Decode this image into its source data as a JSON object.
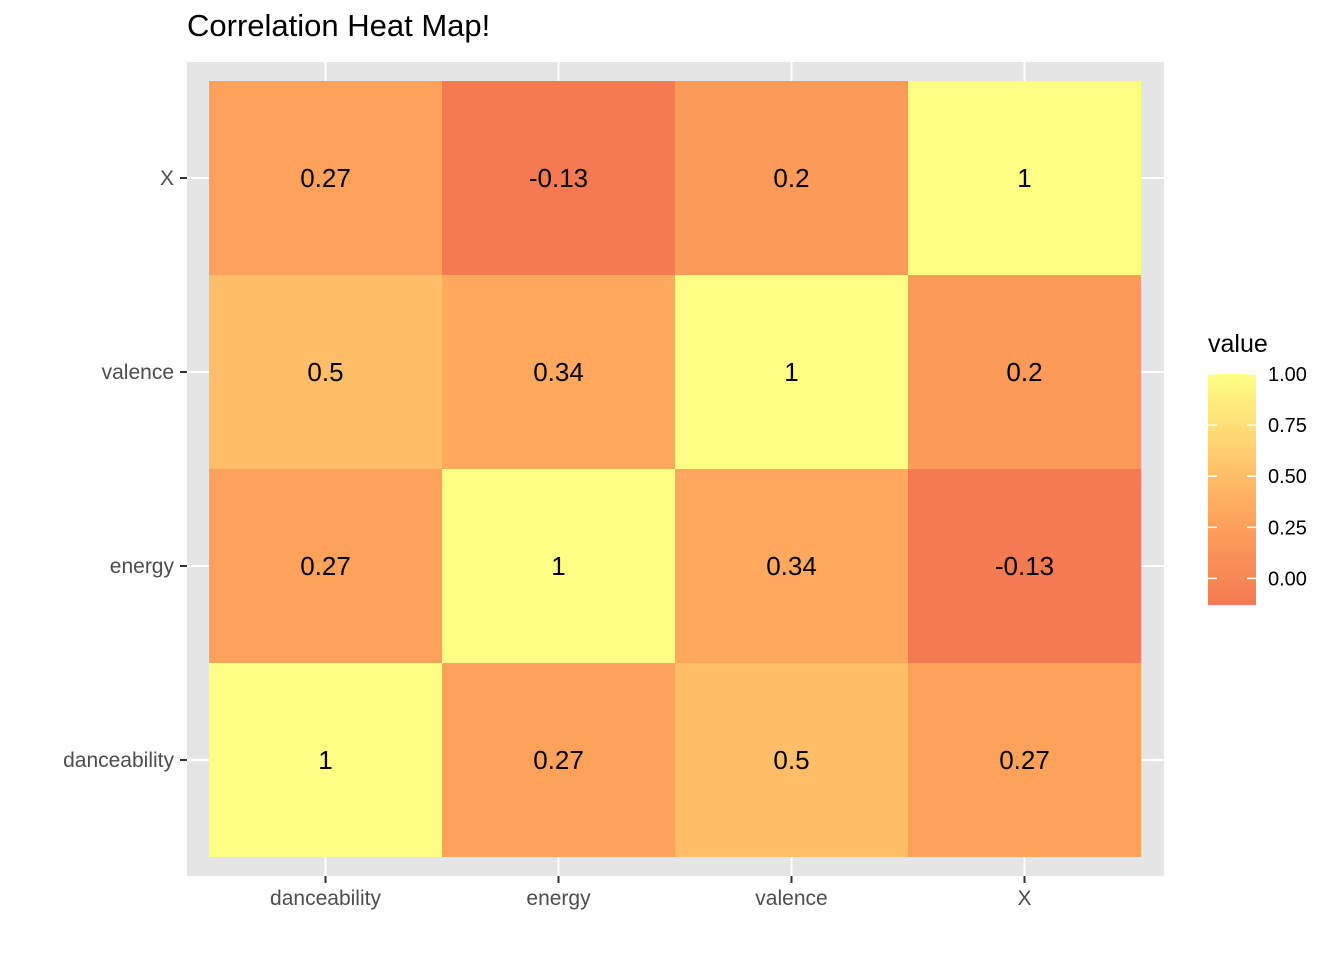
{
  "chart_data": {
    "type": "heatmap",
    "title": "Correlation Heat Map!",
    "xlabel": "",
    "ylabel": "",
    "x_categories": [
      "danceability",
      "energy",
      "valence",
      "X"
    ],
    "y_categories": [
      "danceability",
      "energy",
      "valence",
      "X"
    ],
    "values": [
      [
        1,
        0.27,
        0.5,
        0.27
      ],
      [
        0.27,
        1,
        0.34,
        -0.13
      ],
      [
        0.5,
        0.34,
        1,
        0.2
      ],
      [
        0.27,
        -0.13,
        0.2,
        1
      ]
    ],
    "cell_labels": [
      [
        "1",
        "0.27",
        "0.5",
        "0.27"
      ],
      [
        "0.27",
        "1",
        "0.34",
        "-0.13"
      ],
      [
        "0.5",
        "0.34",
        "1",
        "0.2"
      ],
      [
        "0.27",
        "-0.13",
        "0.2",
        "1"
      ]
    ],
    "legend": {
      "title": "value",
      "ticks": [
        "1.00",
        "0.75",
        "0.50",
        "0.25",
        "0.00"
      ],
      "tick_values": [
        1,
        0.75,
        0.5,
        0.25,
        0
      ],
      "range": [
        -0.13,
        1
      ],
      "placement": "right"
    },
    "colors": {
      "low": "#F47A52",
      "mid": "#FFA45C",
      "high": "#FFFF84",
      "panel_background": "#E5E5E5",
      "grid": "#FFFFFF"
    },
    "grid": true
  }
}
